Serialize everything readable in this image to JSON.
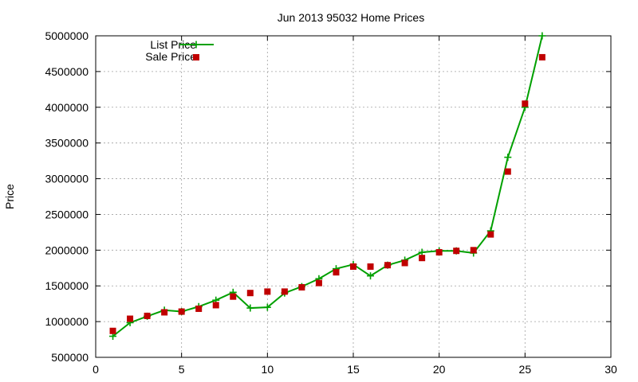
{
  "chart_data": {
    "type": "line",
    "title": "Jun 2013 95032 Home Prices",
    "xlabel": "",
    "ylabel": "Price",
    "xlim": [
      0,
      30
    ],
    "ylim": [
      500000,
      5000000
    ],
    "xticks": [
      0,
      5,
      10,
      15,
      20,
      25,
      30
    ],
    "yticks": [
      500000,
      1000000,
      1500000,
      2000000,
      2500000,
      3000000,
      3500000,
      4000000,
      4500000,
      5000000
    ],
    "grid": true,
    "legend_position": "top-left",
    "series": [
      {
        "name": "List Price",
        "style": "line-plus",
        "color": "#00a000",
        "x": [
          1,
          2,
          3,
          4,
          5,
          6,
          7,
          8,
          9,
          10,
          11,
          12,
          13,
          14,
          15,
          16,
          17,
          18,
          19,
          20,
          21,
          22,
          23,
          24,
          25,
          26
        ],
        "values": [
          795000,
          985000,
          1075000,
          1160000,
          1140000,
          1210000,
          1300000,
          1410000,
          1190000,
          1200000,
          1400000,
          1490000,
          1600000,
          1740000,
          1800000,
          1640000,
          1790000,
          1860000,
          1970000,
          1990000,
          1990000,
          1960000,
          2270000,
          3300000,
          4000000,
          5000000
        ]
      },
      {
        "name": "Sale Price",
        "style": "square",
        "color": "#c00000",
        "x": [
          1,
          2,
          3,
          4,
          5,
          6,
          7,
          8,
          9,
          10,
          11,
          12,
          13,
          14,
          15,
          16,
          17,
          18,
          19,
          20,
          21,
          22,
          23,
          24,
          25,
          26
        ],
        "values": [
          870000,
          1040000,
          1080000,
          1130000,
          1140000,
          1180000,
          1230000,
          1350000,
          1400000,
          1420000,
          1420000,
          1480000,
          1540000,
          1690000,
          1770000,
          1770000,
          1790000,
          1820000,
          1890000,
          1970000,
          1990000,
          2000000,
          2220000,
          3100000,
          4050000,
          4700000
        ]
      }
    ]
  }
}
